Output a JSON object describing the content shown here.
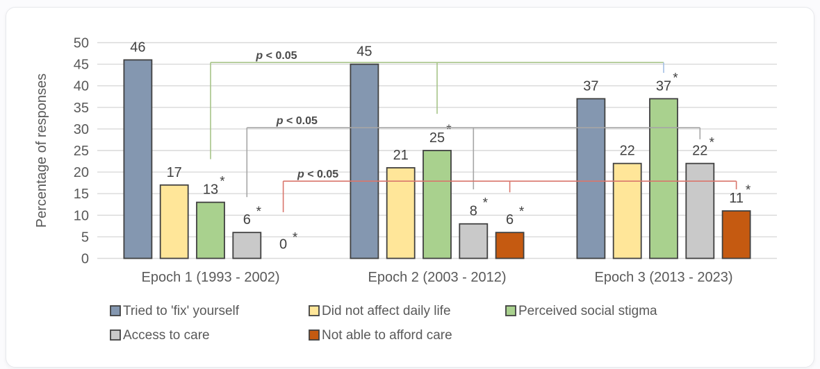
{
  "chart_data": {
    "type": "bar",
    "title": "",
    "ylabel": "Percentage of responses",
    "xlabel": "",
    "ylim": [
      0,
      50
    ],
    "ytick_step": 5,
    "ytick_labels": [
      "0",
      "5",
      "10",
      "15",
      "20",
      "25",
      "30",
      "35",
      "40",
      "45",
      "50"
    ],
    "grid": true,
    "categories": [
      "Epoch 1 (1993 - 2002)",
      "Epoch 2 (2003 - 2012)",
      "Epoch 3 (2013 - 2023)"
    ],
    "series": [
      {
        "name": "Tried to 'fix' yourself",
        "color": "#8497B0",
        "values": [
          46,
          45,
          37
        ],
        "starred": [
          false,
          false,
          false
        ]
      },
      {
        "name": "Did not affect daily life",
        "color": "#FFE699",
        "values": [
          17,
          21,
          22
        ],
        "starred": [
          false,
          false,
          false
        ]
      },
      {
        "name": "Perceived social stigma",
        "color": "#A9D18E",
        "values": [
          13,
          25,
          37
        ],
        "starred": [
          true,
          true,
          true
        ]
      },
      {
        "name": "Access to care",
        "color": "#C9C9C9",
        "values": [
          6,
          8,
          22
        ],
        "starred": [
          true,
          true,
          true
        ]
      },
      {
        "name": "Not able to afford care",
        "color": "#C55A11",
        "values": [
          0,
          6,
          11
        ],
        "starred": [
          true,
          true,
          true
        ]
      }
    ],
    "value_labels": [
      [
        "46",
        "17",
        "13",
        "6",
        "0"
      ],
      [
        "45",
        "21",
        "25",
        "8",
        "6"
      ],
      [
        "37",
        "22",
        "37",
        "22",
        "11"
      ]
    ],
    "star_symbol": "*",
    "significance_brackets": [
      {
        "label": "p < 0.05",
        "color": "#a7c489",
        "level": 45.4,
        "label_dx": 95,
        "anchors": [
          {
            "epoch": 0,
            "series": 2,
            "drop_to": 23
          },
          {
            "epoch": 1,
            "series": 2,
            "drop_to": 33.5
          },
          {
            "epoch": 2,
            "series": 2,
            "drop_to": 43,
            "color": "#a4c0e4"
          }
        ]
      },
      {
        "label": "p < 0.05",
        "color": "#a6a6a6",
        "level": 30.3,
        "label_dx": 72,
        "anchors": [
          {
            "epoch": 0,
            "series": 3,
            "drop_to": 14.2
          },
          {
            "epoch": 1,
            "series": 3,
            "drop_to": 16
          },
          {
            "epoch": 2,
            "series": 3,
            "drop_to": 27.6
          }
        ]
      },
      {
        "label": "p < 0.05",
        "color": "#d9766c",
        "level": 17.9,
        "label_dx": 50,
        "anchors": [
          {
            "epoch": 0,
            "series": 4,
            "drop_to": 10.7
          },
          {
            "epoch": 1,
            "series": 4,
            "drop_to": 15.3
          },
          {
            "epoch": 2,
            "series": 4,
            "drop_to": 16
          }
        ]
      }
    ],
    "legend": {
      "position": "bottom",
      "rows": [
        [
          0,
          1,
          2
        ],
        [
          3,
          4
        ]
      ]
    },
    "colors": {
      "bar_border": "#404040",
      "gridline": "#d9d9d9",
      "axis_text": "#595959",
      "value_label_text": "#404040",
      "legend_text": "#595959",
      "p_label_text": "#4a4a4a"
    }
  }
}
